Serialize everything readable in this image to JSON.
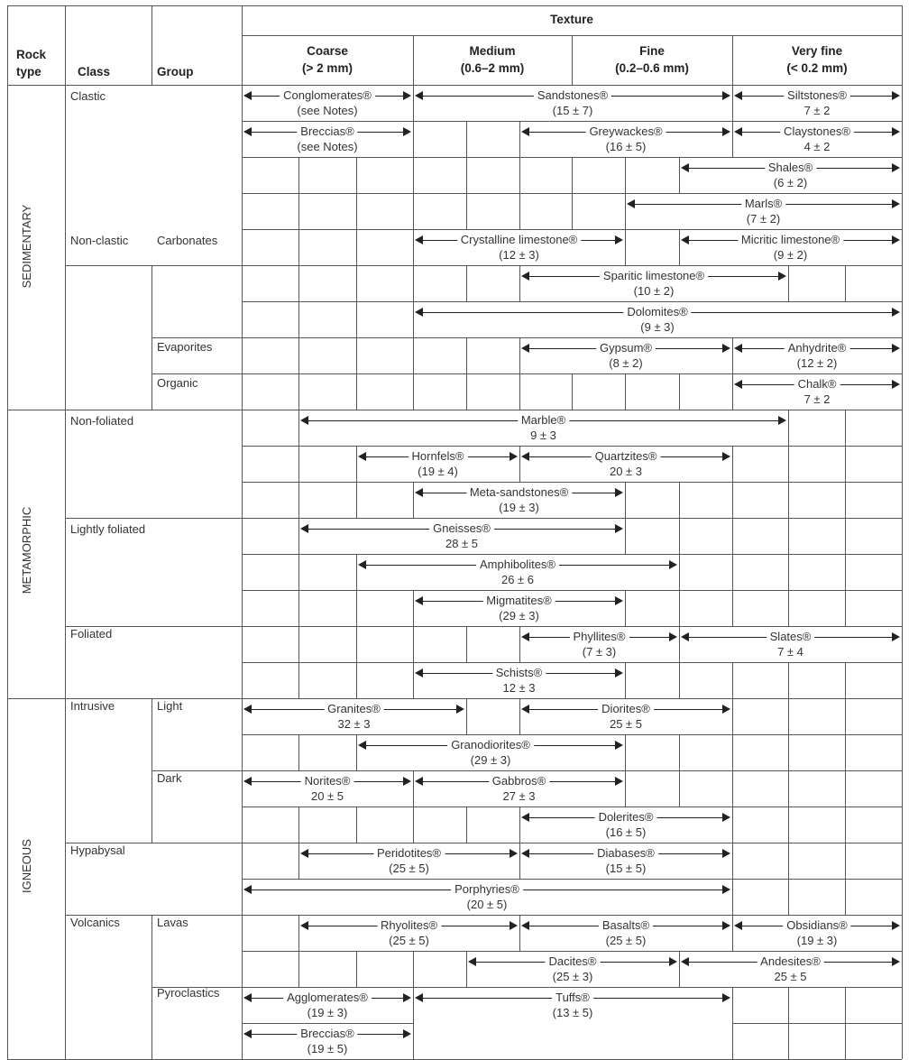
{
  "header": {
    "texture": "Texture",
    "rock_type": [
      "Rock",
      "type"
    ],
    "class": "Class",
    "group": "Group",
    "bands": [
      {
        "name": "Coarse",
        "range": "(> 2 mm)"
      },
      {
        "name": "Medium",
        "range": "(0.6–2 mm)"
      },
      {
        "name": "Fine",
        "range": "(0.2–0.6 mm)"
      },
      {
        "name": "Very fine",
        "range": "(< 0.2 mm)"
      }
    ]
  },
  "rock_types": [
    "SEDIMENTARY",
    "METAMORPHIC",
    "IGNEOUS"
  ],
  "class_labels": [
    "Clastic",
    "Non-clastic",
    "Non-foliated",
    "Lightly foliated",
    "Foliated",
    "Intrusive",
    "Hypabysal",
    "Volcanics"
  ],
  "group_labels": [
    "Carbonates",
    "Evaporites",
    "Organic",
    "Light",
    "Dark",
    "Lavas",
    "Pyroclastics"
  ],
  "entries": [
    {
      "name": "Conglomerates®",
      "value": "(see Notes)"
    },
    {
      "name": "Sandstones®",
      "value": "(15 ± 7)"
    },
    {
      "name": "Siltstones®",
      "value": "7 ± 2"
    },
    {
      "name": "Breccias®",
      "value": "(see Notes)"
    },
    {
      "name": "Greywackes®",
      "value": "(16 ± 5)"
    },
    {
      "name": "Claystones®",
      "value": "4 ± 2"
    },
    {
      "name": "Shales®",
      "value": "(6 ± 2)"
    },
    {
      "name": "Marls®",
      "value": "(7 ± 2)"
    },
    {
      "name": "Crystalline limestone®",
      "value": "(12 ± 3)"
    },
    {
      "name": "Micritic limestone®",
      "value": "(9 ± 2)"
    },
    {
      "name": "Sparitic limestone®",
      "value": "(10 ± 2)"
    },
    {
      "name": "Dolomites®",
      "value": "(9 ± 3)"
    },
    {
      "name": "Gypsum®",
      "value": "(8 ± 2)"
    },
    {
      "name": "Anhydrite®",
      "value": "(12 ± 2)"
    },
    {
      "name": "Chalk®",
      "value": "7 ± 2"
    },
    {
      "name": "Marble®",
      "value": "9 ± 3"
    },
    {
      "name": "Hornfels®",
      "value": "(19 ± 4)"
    },
    {
      "name": "Quartzites®",
      "value": "20 ± 3"
    },
    {
      "name": "Meta-sandstones®",
      "value": "(19 ± 3)"
    },
    {
      "name": "Gneisses®",
      "value": "28 ± 5"
    },
    {
      "name": "Amphibolites®",
      "value": "26 ± 6"
    },
    {
      "name": "Migmatites®",
      "value": "(29 ± 3)"
    },
    {
      "name": "Phyllites®",
      "value": "(7 ± 3)"
    },
    {
      "name": "Slates®",
      "value": "7 ± 4"
    },
    {
      "name": "Schists®",
      "value": "12 ± 3"
    },
    {
      "name": "Granites®",
      "value": "32 ± 3"
    },
    {
      "name": "Diorites®",
      "value": "25 ± 5"
    },
    {
      "name": "Granodiorites®",
      "value": "(29 ± 3)"
    },
    {
      "name": "Norites®",
      "value": "20 ± 5"
    },
    {
      "name": "Gabbros®",
      "value": "27 ± 3"
    },
    {
      "name": "Dolerites®",
      "value": "(16 ± 5)"
    },
    {
      "name": "Peridotites®",
      "value": "(25 ± 5)"
    },
    {
      "name": "Diabases®",
      "value": "(15 ± 5)"
    },
    {
      "name": "Porphyries®",
      "value": "(20 ± 5)"
    },
    {
      "name": "Rhyolites®",
      "value": "(25 ± 5)"
    },
    {
      "name": "Basalts®",
      "value": "(25 ± 5)"
    },
    {
      "name": "Obsidians®",
      "value": "(19 ± 3)"
    },
    {
      "name": "Dacites®",
      "value": "(25 ± 3)"
    },
    {
      "name": "Andesites®",
      "value": "25 ± 5"
    },
    {
      "name": "Agglomerates®",
      "value": "(19 ± 3)"
    },
    {
      "name": "Tuffs®",
      "value": "(13 ± 5)"
    },
    {
      "name": "Breccias®",
      "value": "(19 ± 5)"
    }
  ]
}
